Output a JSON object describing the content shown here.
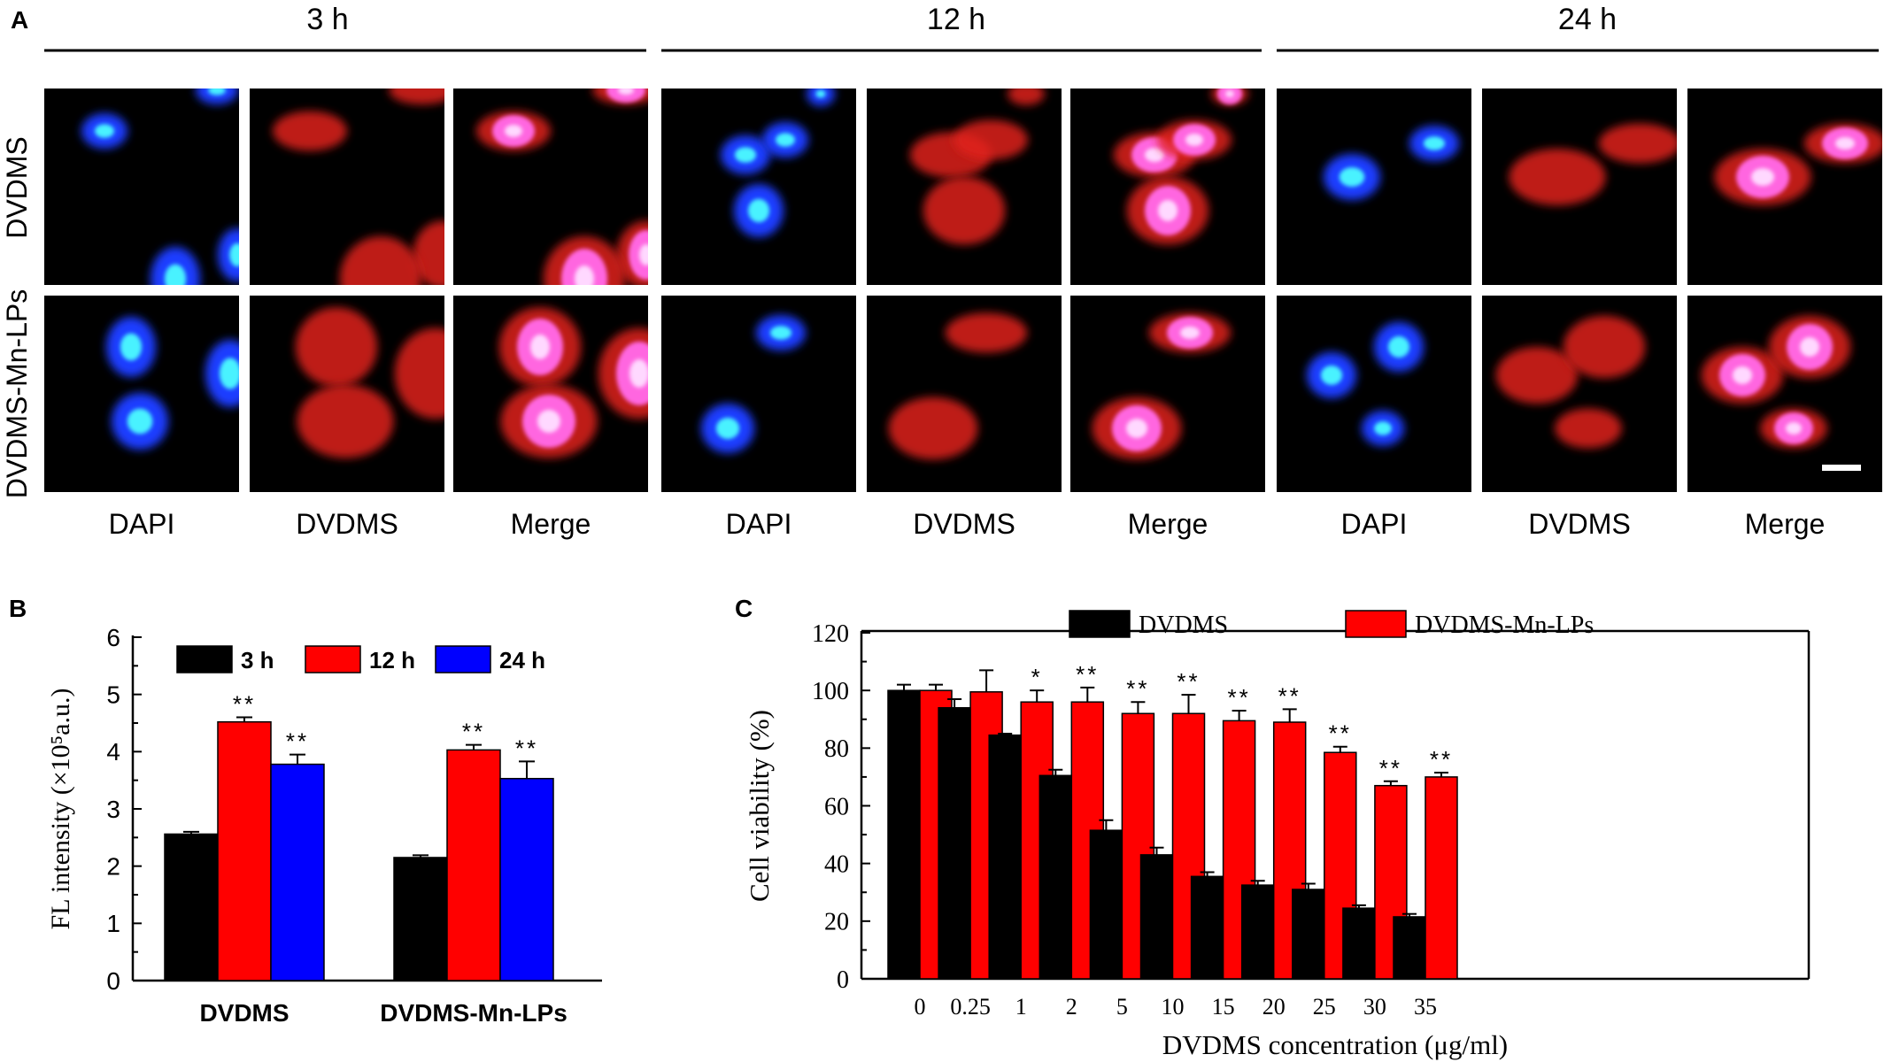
{
  "panel_a": {
    "panel_label": "A",
    "time_points": [
      "3 h",
      "12 h",
      "24 h"
    ],
    "channels": [
      "DAPI",
      "DVDMS",
      "Merge"
    ],
    "row_labels": [
      "DVDMS",
      "DVDMS-Mn-LPs"
    ],
    "colors": {
      "dapi": "#1e3cff",
      "dapi_core": "#4af2ff",
      "dvdms": "#e0241c",
      "merge": "#ff66e0",
      "merge_core": "#ffd8ff",
      "background": "#000000"
    }
  },
  "chart_data": [
    {
      "panel_label": "B",
      "type": "bar",
      "categories": [
        "DVDMS",
        "DVDMS-Mn-LPs"
      ],
      "series": [
        {
          "name": "3 h",
          "color": "#000000",
          "values": [
            2.56,
            2.15
          ],
          "errors": [
            0.04,
            0.04
          ],
          "sig": [
            "",
            ""
          ]
        },
        {
          "name": "12 h",
          "color": "#ff0000",
          "values": [
            4.52,
            4.03
          ],
          "errors": [
            0.08,
            0.09
          ],
          "sig": [
            "**",
            "**"
          ]
        },
        {
          "name": "24 h",
          "color": "#0000ff",
          "values": [
            3.78,
            3.53
          ],
          "errors": [
            0.17,
            0.3
          ],
          "sig": [
            "**",
            "**"
          ]
        }
      ],
      "ylabel": "FL intensity (×10⁵a.u.)",
      "ylim": [
        0,
        6
      ],
      "yticks": [
        "0",
        "1",
        "2",
        "3",
        "4",
        "5",
        "6"
      ],
      "grid": false,
      "legend_placement": "top"
    },
    {
      "panel_label": "C",
      "type": "bar",
      "categories": [
        "0",
        "0.25",
        "1",
        "2",
        "5",
        "10",
        "15",
        "20",
        "25",
        "30",
        "35"
      ],
      "series": [
        {
          "name": "DVDMS",
          "color": "#000000",
          "values": [
            100,
            94,
            84.5,
            70.5,
            51.5,
            43,
            35.5,
            32.5,
            31,
            24.5,
            21.5
          ],
          "errors": [
            2,
            3,
            0.5,
            2,
            3.5,
            2.5,
            1.5,
            1.5,
            2,
            1,
            1
          ],
          "sig": [
            "",
            "",
            "",
            "",
            "",
            "",
            "",
            "",
            "",
            "",
            ""
          ]
        },
        {
          "name": "DVDMS-Mn-LPs",
          "color": "#ff0000",
          "values": [
            100,
            99.5,
            96,
            96,
            92,
            92,
            89.5,
            89,
            78.5,
            67,
            70
          ],
          "errors": [
            2,
            7.5,
            4,
            5,
            4,
            6.5,
            3.5,
            4.5,
            2,
            1.5,
            1.5
          ],
          "sig": [
            "",
            "",
            "*",
            "**",
            "**",
            "**",
            "**",
            "**",
            "**",
            "**",
            "**"
          ]
        }
      ],
      "xlabel": "DVDMS concentration (μg/ml)",
      "ylabel": "Cell viability (%)",
      "ylim": [
        0,
        120
      ],
      "yticks": [
        "0",
        "20",
        "40",
        "60",
        "80",
        "100",
        "120"
      ],
      "grid": false,
      "legend_placement": "top"
    }
  ]
}
